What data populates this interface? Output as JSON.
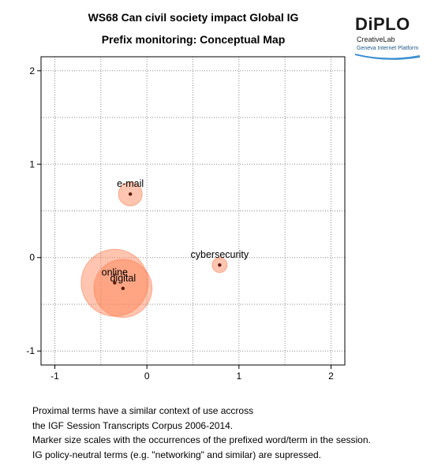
{
  "header": {
    "title_line1": "WS68 Can civil society impact Global IG",
    "title_line2": "Prefix monitoring: Conceptual Map"
  },
  "logo": {
    "name": "DiPLO",
    "sub": "CreativeLab",
    "tagline": "Geneva Internet Platform"
  },
  "chart_data": {
    "type": "scatter",
    "xlim": [
      -1.15,
      2.15
    ],
    "ylim": [
      -1.15,
      2.15
    ],
    "x_ticks": [
      -1,
      0,
      1,
      2
    ],
    "y_ticks": [
      -1,
      0,
      1,
      2
    ],
    "grid": true,
    "points": [
      {
        "label": "e-mail",
        "x": -0.18,
        "y": 0.68,
        "size": 1
      },
      {
        "label": "cybersecurity",
        "x": 0.79,
        "y": -0.08,
        "size": 0.4
      },
      {
        "label": "online",
        "x": -0.35,
        "y": -0.27,
        "size": 8
      },
      {
        "label": "digital",
        "x": -0.26,
        "y": -0.33,
        "size": 6
      }
    ],
    "colors": {
      "bubble": "#ff7f50",
      "dot": "#5a1a0a"
    }
  },
  "caption": {
    "line1": "Proximal terms have a similar context of use accross",
    "line2": "the IGF Session Transcripts Corpus 2006-2014.",
    "line3": "Marker size scales with the occurrences of the prefixed word/term in the session.",
    "line4": "IG policy-neutral terms (e.g. \"networking\" and similar) are supressed."
  }
}
